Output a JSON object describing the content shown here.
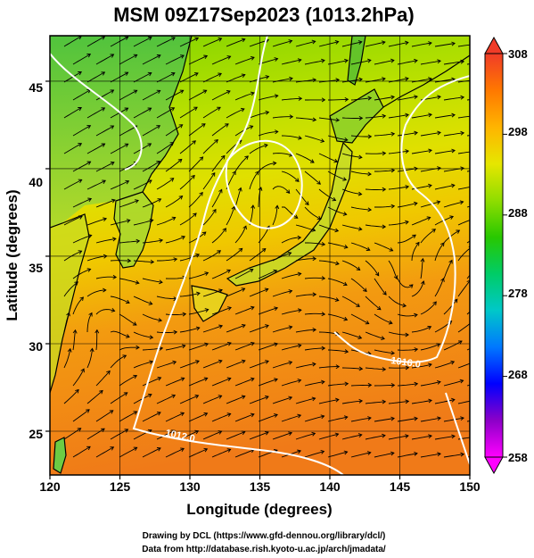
{
  "title": "MSM 09Z17Sep2023 (1013.2hPa)",
  "x_axis": {
    "label": "Longitude (degrees)",
    "range": [
      120,
      150
    ],
    "ticks": [
      "120",
      "125",
      "130",
      "135",
      "140",
      "145",
      "150"
    ]
  },
  "y_axis": {
    "label": "Latitude  (degrees)",
    "range": [
      22.5,
      47.6
    ],
    "ticks": [
      "25",
      "30",
      "35",
      "40",
      "45"
    ]
  },
  "colorbar": {
    "min": 258,
    "max": 308,
    "ticks": [
      "308",
      "298",
      "288",
      "278",
      "268",
      "258"
    ],
    "colors": [
      "#ff00ff",
      "#8c00c8",
      "#0000ff",
      "#0078ff",
      "#00c8c8",
      "#00cc66",
      "#28c800",
      "#90dd00",
      "#e6e600",
      "#ffb400",
      "#ff7800",
      "#f03c28"
    ]
  },
  "contours": [
    {
      "label": "1012.0",
      "level": 1012.0
    },
    {
      "label": "1016.0",
      "level": 1016.0
    }
  ],
  "credits": {
    "line1": "Drawing by DCL (https://www.gfd-dennou.org/library/dcl/)",
    "line2": "Data from http://database.rish.kyoto-u.ac.jp/arch/jmadata/"
  }
}
